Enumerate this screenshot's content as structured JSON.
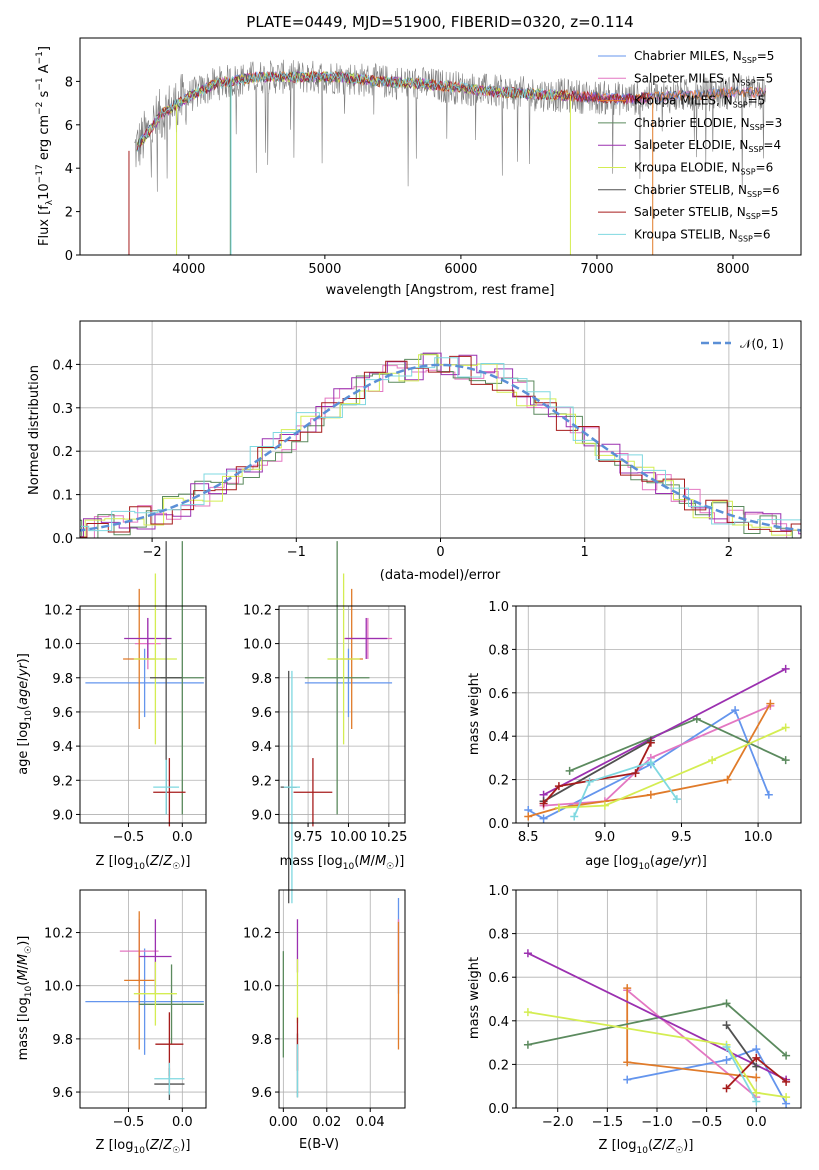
{
  "chart_data": [
    {
      "id": "spectrum",
      "type": "line",
      "title": "PLATE=0449, MJD=51900, FIBERID=0320, z=0.114",
      "xlabel": "wavelength [Angstrom, rest frame]",
      "ylabel": "Flux [f_λ 10^-17 erg cm^-2 s^-1 A^-1]",
      "xlim": [
        3200,
        8500
      ],
      "ylim": [
        0,
        10
      ],
      "xticks": [
        "4000",
        "5000",
        "6000",
        "7000",
        "8000"
      ],
      "yticks": [
        "0",
        "2",
        "4",
        "6",
        "8"
      ],
      "grid": false,
      "legend_position": "right",
      "data_color": "#7f7f7f",
      "continuum": [
        [
          3600,
          4.8
        ],
        [
          3800,
          6.5
        ],
        [
          4000,
          7.3
        ],
        [
          4200,
          7.9
        ],
        [
          4500,
          8.2
        ],
        [
          4800,
          8.2
        ],
        [
          5100,
          8.2
        ],
        [
          5400,
          8.0
        ],
        [
          5700,
          7.9
        ],
        [
          6000,
          7.7
        ],
        [
          6300,
          7.5
        ],
        [
          6600,
          7.4
        ],
        [
          6900,
          7.3
        ],
        [
          7200,
          7.2
        ],
        [
          7500,
          7.3
        ],
        [
          7800,
          7.4
        ],
        [
          8000,
          7.5
        ],
        [
          8200,
          7.5
        ]
      ],
      "series": [
        {
          "name": "Chabrier MILES, N_SSP=5",
          "color": "#6495ed"
        },
        {
          "name": "Salpeter MILES, N_SSP=5",
          "color": "#e377c2"
        },
        {
          "name": "Kroupa MILES, N_SSP=5",
          "color": "#e07b2a"
        },
        {
          "name": "Chabrier ELODIE, N_SSP=3",
          "color": "#5b8a5e"
        },
        {
          "name": "Salpeter ELODIE, N_SSP=4",
          "color": "#9b30b0"
        },
        {
          "name": "Kroupa ELODIE, N_SSP=6",
          "color": "#d4ed52"
        },
        {
          "name": "Chabrier STELIB, N_SSP=6",
          "color": "#505050"
        },
        {
          "name": "Salpeter STELIB, N_SSP=5",
          "color": "#a61c1c"
        },
        {
          "name": "Kroupa STELIB, N_SSP=6",
          "color": "#7fd8e0"
        }
      ]
    },
    {
      "id": "residuals",
      "type": "area",
      "xlabel": "(data-model)/error",
      "ylabel": "Normed distribution",
      "xlim": [
        -2.5,
        2.5
      ],
      "ylim": [
        0,
        0.5
      ],
      "xticks": [
        "−2",
        "−1",
        "0",
        "1",
        "2"
      ],
      "yticks": [
        "0.0",
        "0.1",
        "0.2",
        "0.3",
        "0.4"
      ],
      "grid": true,
      "legend": "𝒩(0, 1)",
      "legend_position": "top-right",
      "normal_curve_color": "#5b8fd6",
      "hist_colors": [
        "#e377c2",
        "#5b8a5e",
        "#9b30b0",
        "#d4ed52",
        "#a61c1c",
        "#7fd8e0"
      ]
    },
    {
      "id": "age-vs-Z",
      "type": "scatter",
      "xlabel": "Z [log10(Z/Z☉)]",
      "ylabel": "age [log10(age/yr)]",
      "xlim": [
        -0.95,
        0.22
      ],
      "ylim": [
        8.95,
        10.22
      ],
      "xticks": [
        "−0.5",
        "0.0"
      ],
      "yticks": [
        "9.0",
        "9.2",
        "9.4",
        "9.6",
        "9.8",
        "10.0",
        "10.2"
      ],
      "grid": true,
      "points": [
        {
          "series": "Chabrier MILES",
          "x": -0.35,
          "xerr": 0.55,
          "y": 9.77,
          "yerr": 0.2
        },
        {
          "series": "Salpeter MILES",
          "x": -0.32,
          "xerr": 0.12,
          "y": 10.0,
          "yerr": 0.15
        },
        {
          "series": "Kroupa MILES",
          "x": -0.4,
          "xerr": 0.15,
          "y": 9.91,
          "yerr": 0.41
        },
        {
          "series": "Chabrier ELODIE",
          "x": 0.0,
          "xerr": 0.2,
          "y": 9.8,
          "yerr": 0.8
        },
        {
          "series": "Salpeter ELODIE",
          "x": -0.32,
          "xerr": 0.22,
          "y": 10.03,
          "yerr": 0.12
        },
        {
          "series": "Kroupa ELODIE",
          "x": -0.25,
          "xerr": 0.2,
          "y": 9.91,
          "yerr": 0.5
        },
        {
          "series": "Chabrier STELIB",
          "x": -0.15,
          "xerr": 0.15,
          "y": 9.8,
          "yerr": 0.8
        },
        {
          "series": "Salpeter STELIB",
          "x": -0.12,
          "xerr": 0.15,
          "y": 9.13,
          "yerr": 0.2
        },
        {
          "series": "Kroupa STELIB",
          "x": -0.15,
          "xerr": 0.12,
          "y": 9.16,
          "yerr": 0.16
        }
      ]
    },
    {
      "id": "age-vs-mass",
      "type": "scatter",
      "xlabel": "mass [log10(M/M☉)]",
      "xlim": [
        9.57,
        10.35
      ],
      "ylim": [
        8.95,
        10.22
      ],
      "xticks": [
        "9.75",
        "10.00",
        "10.25"
      ],
      "yticks": [
        "9.0",
        "9.2",
        "9.4",
        "9.6",
        "9.8",
        "10.0",
        "10.2"
      ],
      "grid": true,
      "points": [
        {
          "series": "Chabrier MILES",
          "x": 10.0,
          "xerr": 0.27,
          "y": 9.77,
          "yerr": 0.2
        },
        {
          "series": "Salpeter MILES",
          "x": 10.12,
          "xerr": 0.15,
          "y": 10.03,
          "yerr": 0.12
        },
        {
          "series": "Kroupa MILES",
          "x": 10.02,
          "xerr": 0.07,
          "y": 9.91,
          "yerr": 0.41
        },
        {
          "series": "Chabrier ELODIE",
          "x": 9.93,
          "xerr": 0.2,
          "y": 9.8,
          "yerr": 0.8
        },
        {
          "series": "Salpeter ELODIE",
          "x": 10.11,
          "xerr": 0.13,
          "y": 10.03,
          "yerr": 0.12
        },
        {
          "series": "Kroupa ELODIE",
          "x": 9.97,
          "xerr": 0.1,
          "y": 9.91,
          "yerr": 0.5
        },
        {
          "series": "Chabrier STELIB",
          "x": 9.63,
          "xerr": 0.05,
          "y": 9.16,
          "yerr": 0.68
        },
        {
          "series": "Salpeter STELIB",
          "x": 9.78,
          "xerr": 0.12,
          "y": 9.13,
          "yerr": 0.2
        },
        {
          "series": "Kroupa STELIB",
          "x": 9.65,
          "xerr": 0.05,
          "y": 9.16,
          "yerr": 0.68
        }
      ]
    },
    {
      "id": "weight-vs-age",
      "type": "line",
      "xlabel": "age [log10(age/yr)]",
      "ylabel": "mass weight",
      "xlim": [
        8.42,
        10.28
      ],
      "ylim": [
        0,
        1
      ],
      "xticks": [
        "8.5",
        "9.0",
        "9.5",
        "10.0"
      ],
      "yticks": [
        "0.0",
        "0.2",
        "0.4",
        "0.6",
        "0.8",
        "1.0"
      ],
      "grid": true,
      "series": [
        {
          "name": "Chabrier MILES",
          "x": [
            8.5,
            8.6,
            9.3,
            9.85,
            10.07
          ],
          "y": [
            0.06,
            0.02,
            0.27,
            0.52,
            0.13
          ]
        },
        {
          "name": "Salpeter MILES",
          "x": [
            8.6,
            9.0,
            9.3,
            10.08
          ],
          "y": [
            0.08,
            0.1,
            0.3,
            0.54
          ]
        },
        {
          "name": "Kroupa MILES",
          "x": [
            8.5,
            8.7,
            9.3,
            9.8,
            10.08
          ],
          "y": [
            0.03,
            0.07,
            0.13,
            0.2,
            0.55
          ]
        },
        {
          "name": "Chabrier ELODIE",
          "x": [
            8.77,
            9.6,
            10.18
          ],
          "y": [
            0.24,
            0.48,
            0.29
          ]
        },
        {
          "name": "Salpeter ELODIE",
          "x": [
            8.6,
            10.18
          ],
          "y": [
            0.13,
            0.71
          ]
        },
        {
          "name": "Kroupa ELODIE",
          "x": [
            8.7,
            9.0,
            9.7,
            10.18
          ],
          "y": [
            0.07,
            0.08,
            0.29,
            0.44
          ]
        },
        {
          "name": "Chabrier STELIB",
          "x": [
            8.6,
            9.3
          ],
          "y": [
            0.1,
            0.38
          ]
        },
        {
          "name": "Salpeter STELIB",
          "x": [
            8.6,
            8.7,
            9.2,
            9.3
          ],
          "y": [
            0.09,
            0.17,
            0.23,
            0.37
          ]
        },
        {
          "name": "Kroupa STELIB",
          "x": [
            8.8,
            8.9,
            9.3,
            9.47
          ],
          "y": [
            0.03,
            0.19,
            0.28,
            0.11
          ]
        }
      ]
    },
    {
      "id": "mass-vs-Z",
      "type": "scatter",
      "xlabel": "Z [log10(Z/Z☉)]",
      "ylabel": "mass [log10(M/M☉)]",
      "xlim": [
        -0.95,
        0.22
      ],
      "ylim": [
        9.54,
        10.36
      ],
      "xticks": [
        "−0.5",
        "0.0"
      ],
      "yticks": [
        "9.6",
        "9.8",
        "10.0",
        "10.2"
      ],
      "grid": true,
      "points": [
        {
          "series": "Chabrier MILES",
          "x": -0.35,
          "xerr": 0.55,
          "y": 9.94,
          "yerr": 0.2
        },
        {
          "series": "Salpeter MILES",
          "x": -0.4,
          "xerr": 0.18,
          "y": 10.13,
          "yerr": 0.12
        },
        {
          "series": "Kroupa MILES",
          "x": -0.4,
          "xerr": 0.14,
          "y": 10.02,
          "yerr": 0.26
        },
        {
          "series": "Chabrier ELODIE",
          "x": -0.1,
          "xerr": 0.3,
          "y": 9.93,
          "yerr": 0.15
        },
        {
          "series": "Salpeter ELODIE",
          "x": -0.25,
          "xerr": 0.15,
          "y": 10.11,
          "yerr": 0.14
        },
        {
          "series": "Kroupa ELODIE",
          "x": -0.25,
          "xerr": 0.2,
          "y": 9.97,
          "yerr": 0.12
        },
        {
          "series": "Chabrier STELIB",
          "x": -0.12,
          "xerr": 0.14,
          "y": 9.63,
          "yerr": 0.06
        },
        {
          "series": "Salpeter STELIB",
          "x": -0.12,
          "xerr": 0.13,
          "y": 9.78,
          "yerr": 0.12
        },
        {
          "series": "Kroupa STELIB",
          "x": -0.12,
          "xerr": 0.14,
          "y": 9.65,
          "yerr": 0.06
        }
      ]
    },
    {
      "id": "mass-vs-EBV",
      "type": "scatter",
      "xlabel": "E(B-V)",
      "xlim": [
        -0.002,
        0.056
      ],
      "ylim": [
        9.54,
        10.36
      ],
      "xticks": [
        "0.00",
        "0.02",
        "0.04"
      ],
      "yticks": [
        "9.6",
        "9.8",
        "10.0",
        "10.2"
      ],
      "grid": true,
      "points": [
        {
          "series": "Chabrier MILES",
          "x": 0.053,
          "y": 10.15,
          "yerr": 0.18
        },
        {
          "series": "Salpeter MILES",
          "x": 0.053,
          "y": 10.13,
          "yerr": 0.12
        },
        {
          "series": "Kroupa MILES",
          "x": 0.053,
          "y": 10.0,
          "yerr": 0.24
        },
        {
          "series": "Chabrier ELODIE",
          "x": 0.0,
          "y": 9.93,
          "yerr": 0.2
        },
        {
          "series": "Salpeter ELODIE",
          "x": 0.0065,
          "y": 10.15,
          "yerr": 0.1
        },
        {
          "series": "Kroupa ELODIE",
          "x": 0.0065,
          "y": 9.98,
          "yerr": 0.12
        },
        {
          "series": "Chabrier STELIB",
          "x": 0.0065,
          "y": 9.7,
          "yerr": 0.12
        },
        {
          "series": "Salpeter STELIB",
          "x": 0.0065,
          "y": 9.78,
          "yerr": 0.1
        },
        {
          "series": "Kroupa STELIB",
          "x": 0.0065,
          "y": 9.68,
          "yerr": 0.1
        }
      ]
    },
    {
      "id": "weight-vs-Z",
      "type": "line",
      "xlabel": "Z [log10(Z/Z☉)]",
      "ylabel": "mass weight",
      "xlim": [
        -2.42,
        0.45
      ],
      "ylim": [
        0,
        1
      ],
      "xticks": [
        "−2.0",
        "−1.5",
        "−1.0",
        "−0.5",
        "0.0"
      ],
      "yticks": [
        "0.0",
        "0.2",
        "0.4",
        "0.6",
        "0.8",
        "1.0"
      ],
      "grid": true,
      "series": [
        {
          "name": "Chabrier MILES",
          "x": [
            -1.3,
            -0.3,
            0.0,
            0.3
          ],
          "y": [
            0.13,
            0.22,
            0.27,
            0.02
          ]
        },
        {
          "name": "Salpeter MILES",
          "x": [
            -1.3,
            0.0
          ],
          "y": [
            0.54,
            0.05
          ]
        },
        {
          "name": "Kroupa MILES",
          "x": [
            -1.3,
            -1.3,
            0.0
          ],
          "y": [
            0.55,
            0.21,
            0.14
          ]
        },
        {
          "name": "Chabrier ELODIE",
          "x": [
            -2.3,
            -0.3,
            0.3
          ],
          "y": [
            0.29,
            0.48,
            0.24
          ]
        },
        {
          "name": "Salpeter ELODIE",
          "x": [
            -2.3,
            0.3
          ],
          "y": [
            0.71,
            0.13
          ]
        },
        {
          "name": "Kroupa ELODIE",
          "x": [
            -2.3,
            -0.3,
            0.0,
            0.3
          ],
          "y": [
            0.44,
            0.29,
            0.07,
            0.05
          ]
        },
        {
          "name": "Chabrier STELIB",
          "x": [
            -0.3,
            0.0
          ],
          "y": [
            0.38,
            0.19
          ]
        },
        {
          "name": "Salpeter STELIB",
          "x": [
            -0.3,
            0.0,
            0.3
          ],
          "y": [
            0.09,
            0.23,
            0.12
          ]
        },
        {
          "name": "Kroupa STELIB",
          "x": [
            -0.3,
            0.0
          ],
          "y": [
            0.28,
            0.03
          ]
        }
      ]
    }
  ]
}
